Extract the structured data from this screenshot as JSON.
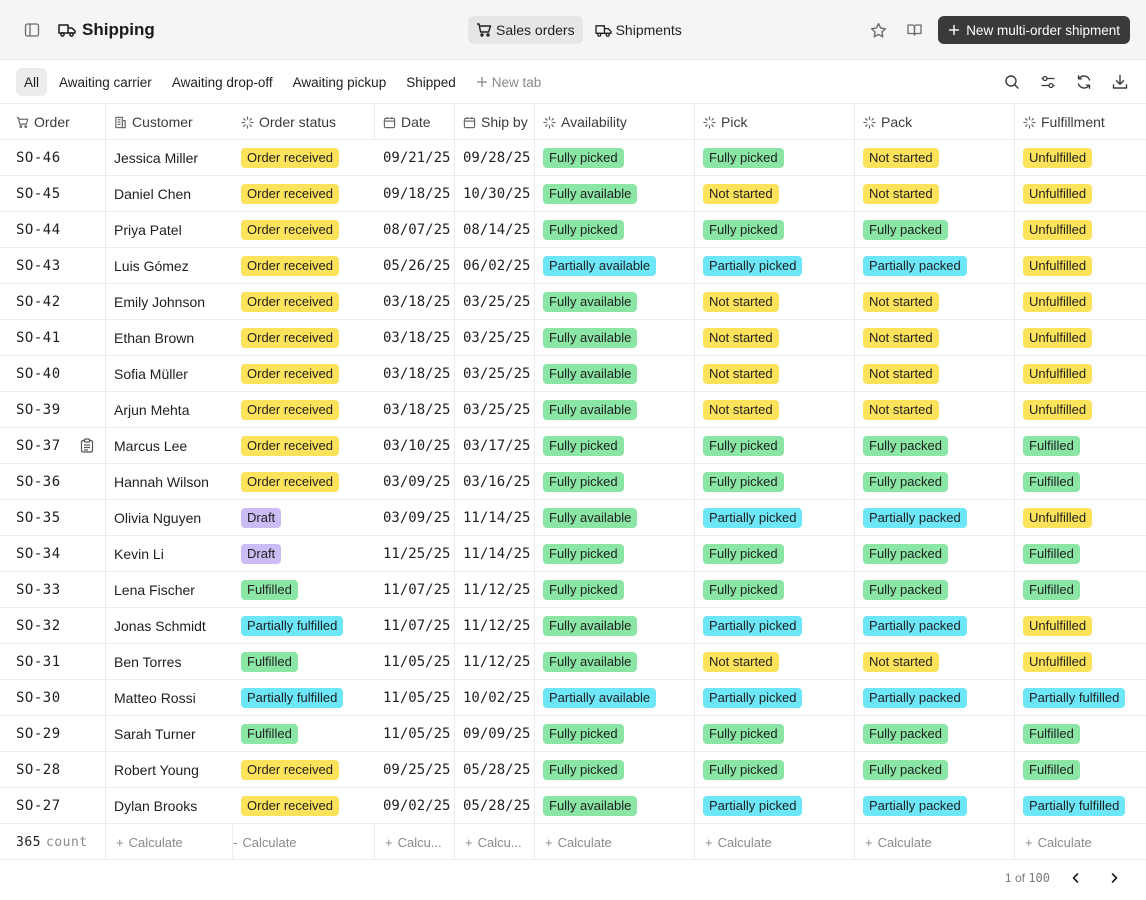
{
  "app": {
    "title": "Shipping"
  },
  "header": {
    "segments": [
      {
        "label": "Sales orders",
        "active": true
      },
      {
        "label": "Shipments",
        "active": false
      }
    ],
    "new_button": "New multi-order shipment"
  },
  "tabs": {
    "items": [
      "All",
      "Awaiting carrier",
      "Awaiting drop-off",
      "Awaiting pickup",
      "Shipped"
    ],
    "new_tab": "New tab"
  },
  "columns": [
    "Order",
    "Customer",
    "Order status",
    "Date",
    "Ship by",
    "Availability",
    "Pick",
    "Pack",
    "Fulfillment"
  ],
  "badge_colors": {
    "yellow": "#fce35b",
    "green": "#8be6a6",
    "cyan": "#6de6f7",
    "purple": "#cbbcf5"
  },
  "rows": [
    {
      "order": "SO-46",
      "customer": "Jessica Miller",
      "status": "Order received",
      "date": "09/21/25",
      "ship_by": "09/28/25",
      "availability": "Fully picked",
      "pick": "Fully picked",
      "pack": "Not started",
      "fulfillment": "Unfulfilled"
    },
    {
      "order": "SO-45",
      "customer": "Daniel Chen",
      "status": "Order received",
      "date": "09/18/25",
      "ship_by": "10/30/25",
      "availability": "Fully available",
      "pick": "Not started",
      "pack": "Not started",
      "fulfillment": "Unfulfilled"
    },
    {
      "order": "SO-44",
      "customer": "Priya Patel",
      "status": "Order received",
      "date": "08/07/25",
      "ship_by": "08/14/25",
      "availability": "Fully picked",
      "pick": "Fully picked",
      "pack": "Fully packed",
      "fulfillment": "Unfulfilled"
    },
    {
      "order": "SO-43",
      "customer": "Luis Gómez",
      "status": "Order received",
      "date": "05/26/25",
      "ship_by": "06/02/25",
      "availability": "Partially available",
      "pick": "Partially picked",
      "pack": "Partially packed",
      "fulfillment": "Unfulfilled"
    },
    {
      "order": "SO-42",
      "customer": "Emily Johnson",
      "status": "Order received",
      "date": "03/18/25",
      "ship_by": "03/25/25",
      "availability": "Fully available",
      "pick": "Not started",
      "pack": "Not started",
      "fulfillment": "Unfulfilled"
    },
    {
      "order": "SO-41",
      "customer": "Ethan Brown",
      "status": "Order received",
      "date": "03/18/25",
      "ship_by": "03/25/25",
      "availability": "Fully available",
      "pick": "Not started",
      "pack": "Not started",
      "fulfillment": "Unfulfilled"
    },
    {
      "order": "SO-40",
      "customer": "Sofia Müller",
      "status": "Order received",
      "date": "03/18/25",
      "ship_by": "03/25/25",
      "availability": "Fully available",
      "pick": "Not started",
      "pack": "Not started",
      "fulfillment": "Unfulfilled"
    },
    {
      "order": "SO-39",
      "customer": "Arjun Mehta",
      "status": "Order received",
      "date": "03/18/25",
      "ship_by": "03/25/25",
      "availability": "Fully available",
      "pick": "Not started",
      "pack": "Not started",
      "fulfillment": "Unfulfilled"
    },
    {
      "order": "SO-37",
      "customer": "Marcus Lee",
      "status": "Order received",
      "date": "03/10/25",
      "ship_by": "03/17/25",
      "availability": "Fully picked",
      "pick": "Fully picked",
      "pack": "Fully packed",
      "fulfillment": "Fulfilled",
      "note": true
    },
    {
      "order": "SO-36",
      "customer": "Hannah Wilson",
      "status": "Order received",
      "date": "03/09/25",
      "ship_by": "03/16/25",
      "availability": "Fully picked",
      "pick": "Fully picked",
      "pack": "Fully packed",
      "fulfillment": "Fulfilled"
    },
    {
      "order": "SO-35",
      "customer": "Olivia Nguyen",
      "status": "Draft",
      "date": "03/09/25",
      "ship_by": "11/14/25",
      "availability": "Fully available",
      "pick": "Partially picked",
      "pack": "Partially packed",
      "fulfillment": "Unfulfilled"
    },
    {
      "order": "SO-34",
      "customer": "Kevin Li",
      "status": "Draft",
      "date": "11/25/25",
      "ship_by": "11/14/25",
      "availability": "Fully picked",
      "pick": "Fully picked",
      "pack": "Fully packed",
      "fulfillment": "Fulfilled"
    },
    {
      "order": "SO-33",
      "customer": "Lena Fischer",
      "status": "Fulfilled",
      "date": "11/07/25",
      "ship_by": "11/12/25",
      "availability": "Fully picked",
      "pick": "Fully picked",
      "pack": "Fully packed",
      "fulfillment": "Fulfilled"
    },
    {
      "order": "SO-32",
      "customer": "Jonas Schmidt",
      "status": "Partially fulfilled",
      "date": "11/07/25",
      "ship_by": "11/12/25",
      "availability": "Fully available",
      "pick": "Partially picked",
      "pack": "Partially packed",
      "fulfillment": "Unfulfilled"
    },
    {
      "order": "SO-31",
      "customer": "Ben Torres",
      "status": "Fulfilled",
      "date": "11/05/25",
      "ship_by": "11/12/25",
      "availability": "Fully available",
      "pick": "Not started",
      "pack": "Not started",
      "fulfillment": "Unfulfilled"
    },
    {
      "order": "SO-30",
      "customer": "Matteo Rossi",
      "status": "Partially fulfilled",
      "date": "11/05/25",
      "ship_by": "10/02/25",
      "availability": "Partially available",
      "pick": "Partially picked",
      "pack": "Partially packed",
      "fulfillment": "Partially fulfilled"
    },
    {
      "order": "SO-29",
      "customer": "Sarah Turner",
      "status": "Fulfilled",
      "date": "11/05/25",
      "ship_by": "09/09/25",
      "availability": "Fully picked",
      "pick": "Fully picked",
      "pack": "Fully packed",
      "fulfillment": "Fulfilled"
    },
    {
      "order": "SO-28",
      "customer": "Robert Young",
      "status": "Order received",
      "date": "09/25/25",
      "ship_by": "05/28/25",
      "availability": "Fully picked",
      "pick": "Fully picked",
      "pack": "Fully packed",
      "fulfillment": "Fulfilled"
    },
    {
      "order": "SO-27",
      "customer": "Dylan Brooks",
      "status": "Order received",
      "date": "09/02/25",
      "ship_by": "05/28/25",
      "availability": "Fully available",
      "pick": "Partially picked",
      "pack": "Partially packed",
      "fulfillment": "Partially fulfilled"
    }
  ],
  "footer": {
    "count_value": "365",
    "count_label": "count",
    "calculate": "Calculate",
    "calculate_short": "Calcu..."
  },
  "pagination": {
    "current": "1",
    "of": "of",
    "total": "100"
  }
}
